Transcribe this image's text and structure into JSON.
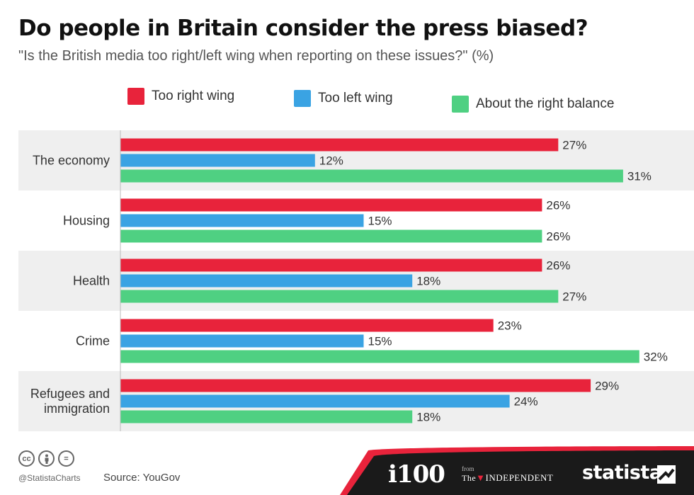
{
  "title": "Do people in Britain consider the press biased?",
  "subtitle": "\"Is the British media too right/left wing when reporting on these issues?\" (%)",
  "legend": [
    {
      "label": "Too right wing",
      "color": "#e8233b"
    },
    {
      "label": "Too left wing",
      "color": "#3aa3e3"
    },
    {
      "label": "About the right balance",
      "color": "#4fd082"
    }
  ],
  "chart_data": {
    "type": "bar",
    "orientation": "horizontal",
    "categories": [
      "The economy",
      "Housing",
      "Health",
      "Crime",
      "Refugees and immigration"
    ],
    "category_lines": [
      [
        "The economy"
      ],
      [
        "Housing"
      ],
      [
        "Health"
      ],
      [
        "Crime"
      ],
      [
        "Refugees and",
        "immigration"
      ]
    ],
    "series": [
      {
        "name": "Too right wing",
        "color": "#e8233b",
        "values": [
          27,
          26,
          26,
          23,
          29
        ]
      },
      {
        "name": "Too left wing",
        "color": "#3aa3e3",
        "values": [
          12,
          15,
          18,
          15,
          24
        ]
      },
      {
        "name": "About the right balance",
        "color": "#4fd082",
        "values": [
          31,
          26,
          27,
          32,
          18
        ]
      }
    ],
    "value_suffix": "%",
    "xlim": [
      0,
      32
    ],
    "grid": false,
    "legend_position": "top"
  },
  "footer": {
    "cc_icons": [
      "cc",
      "by",
      "="
    ],
    "handle": "@StatistaCharts",
    "source": "Source: YouGov",
    "brand_i100": "i100",
    "brand_from": "from",
    "brand_the": "The",
    "brand_independent": "INDEPENDENT",
    "brand_statista": "statista",
    "bar_color": "#1a1a1a",
    "accent_color": "#e8233b"
  }
}
